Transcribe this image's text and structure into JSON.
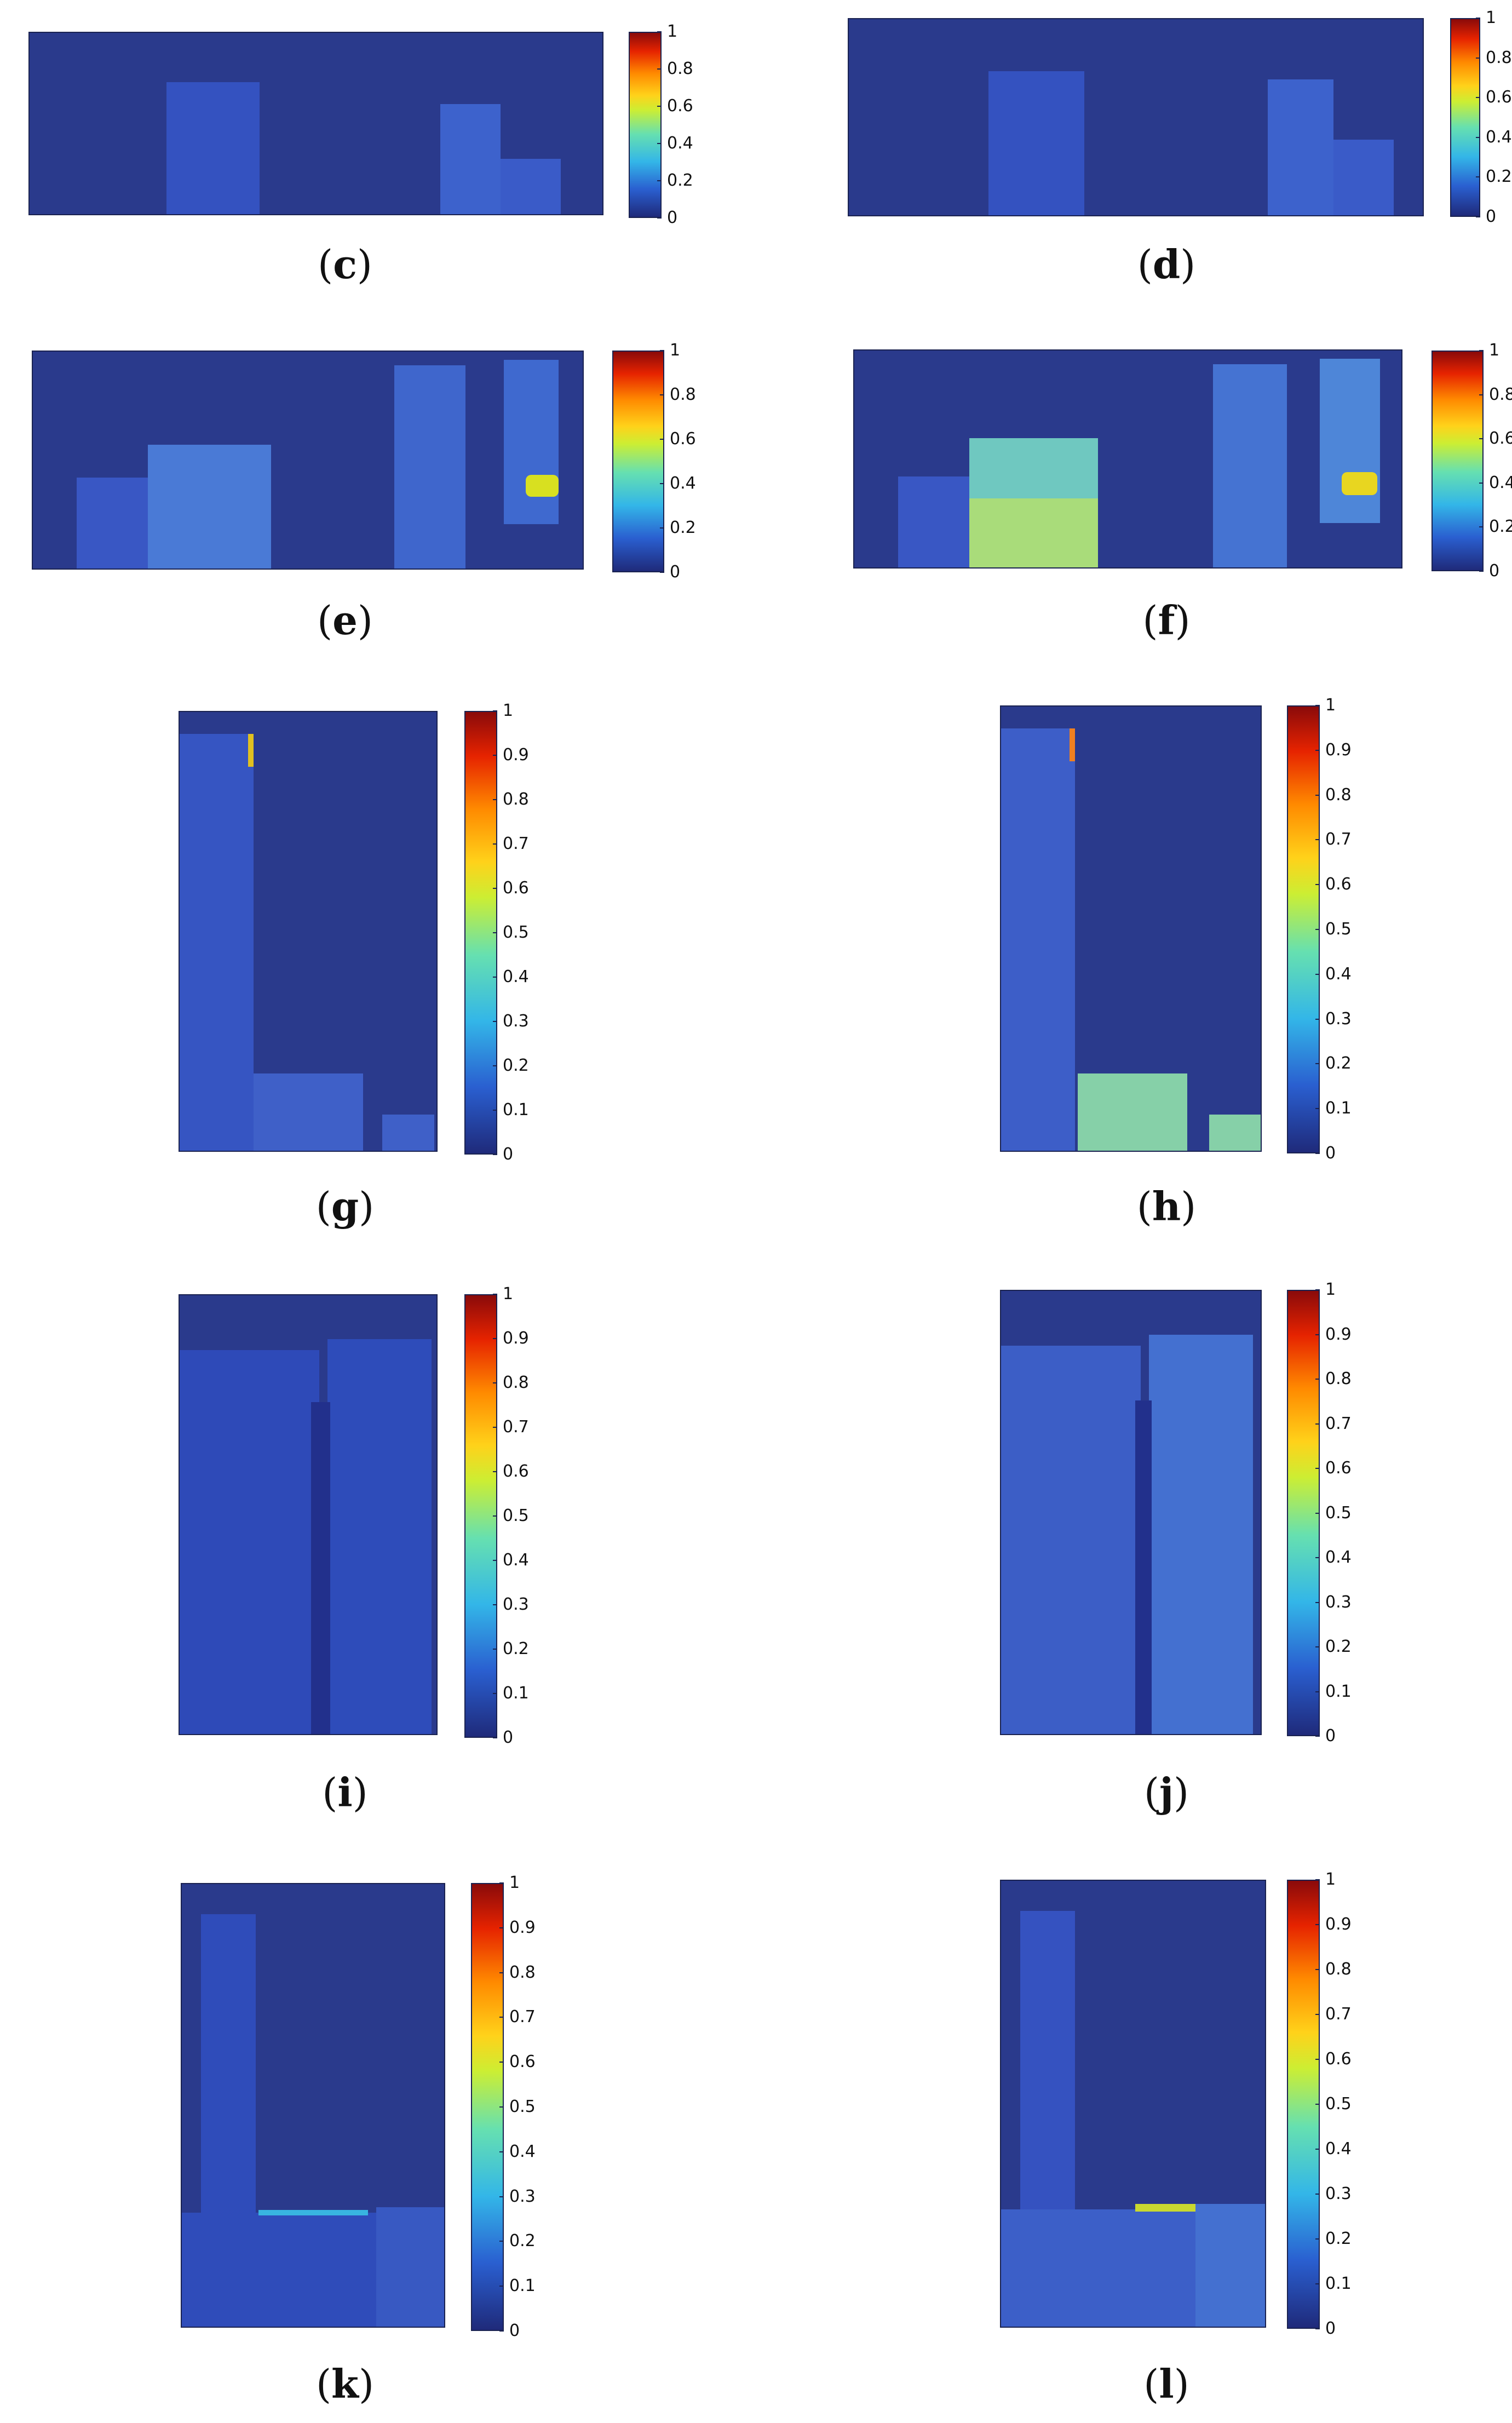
{
  "panels": [
    {
      "id": "c",
      "ticks": [
        "1",
        "0.8",
        "0.6",
        "0.4",
        "0.2",
        "0"
      ]
    },
    {
      "id": "d",
      "ticks": [
        "1",
        "0.8",
        "0.6",
        "0.4",
        "0.2",
        "0"
      ]
    },
    {
      "id": "e",
      "ticks": [
        "1",
        "0.8",
        "0.6",
        "0.4",
        "0.2",
        "0"
      ]
    },
    {
      "id": "f",
      "ticks": [
        "1",
        "0.8",
        "0.6",
        "0.4",
        "0.2",
        "0"
      ]
    },
    {
      "id": "g",
      "ticks": [
        "1",
        "0.9",
        "0.8",
        "0.7",
        "0.6",
        "0.5",
        "0.4",
        "0.3",
        "0.2",
        "0.1",
        "0"
      ]
    },
    {
      "id": "h",
      "ticks": [
        "1",
        "0.9",
        "0.8",
        "0.7",
        "0.6",
        "0.5",
        "0.4",
        "0.3",
        "0.2",
        "0.1",
        "0"
      ]
    },
    {
      "id": "i",
      "ticks": [
        "1",
        "0.9",
        "0.8",
        "0.7",
        "0.6",
        "0.5",
        "0.4",
        "0.3",
        "0.2",
        "0.1",
        "0"
      ]
    },
    {
      "id": "j",
      "ticks": [
        "1",
        "0.9",
        "0.8",
        "0.7",
        "0.6",
        "0.5",
        "0.4",
        "0.3",
        "0.2",
        "0.1",
        "0"
      ]
    },
    {
      "id": "k",
      "ticks": [
        "1",
        "0.9",
        "0.8",
        "0.7",
        "0.6",
        "0.5",
        "0.4",
        "0.3",
        "0.2",
        "0.1",
        "0"
      ]
    },
    {
      "id": "l",
      "ticks": [
        "1",
        "0.9",
        "0.8",
        "0.7",
        "0.6",
        "0.5",
        "0.4",
        "0.3",
        "0.2",
        "0.1",
        "0"
      ]
    }
  ],
  "labels": {
    "c": {
      "open": "(",
      "letter": "c",
      "close": ")"
    },
    "d": {
      "open": "(",
      "letter": "d",
      "close": ")"
    },
    "e": {
      "open": "(",
      "letter": "e",
      "close": ")"
    },
    "f": {
      "open": "(",
      "letter": "f",
      "close": ")"
    },
    "g": {
      "open": "(",
      "letter": "g",
      "close": ")"
    },
    "h": {
      "open": "(",
      "letter": "h",
      "close": ")"
    },
    "i": {
      "open": "(",
      "letter": "i",
      "close": ")"
    },
    "j": {
      "open": "(",
      "letter": "j",
      "close": ")"
    },
    "k": {
      "open": "(",
      "letter": "k",
      "close": ")"
    },
    "l": {
      "open": "(",
      "letter": "l",
      "close": ")"
    }
  },
  "colormap": {
    "low": "#1f2a7a",
    "mid": "#33b6e8",
    "high": "#8a0a0a"
  }
}
